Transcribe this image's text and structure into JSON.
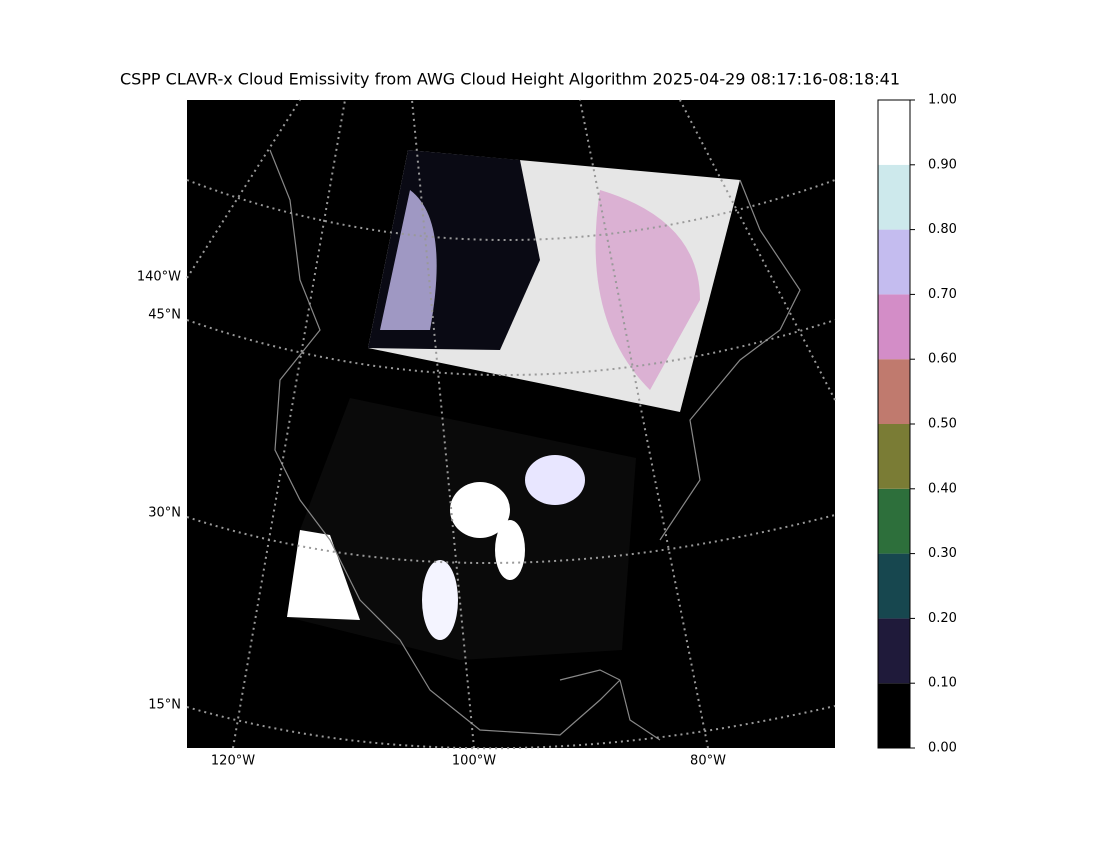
{
  "title": "CSPP CLAVR-x Cloud Emissivity from AWG Cloud Height Algorithm 2025-04-29 08:17:16-08:18:41",
  "map": {
    "lat_labels": [
      "45°N",
      "30°N",
      "15°N"
    ],
    "lon_labels_left": [
      "140°W"
    ],
    "lon_labels_bottom": [
      "120°W",
      "100°W",
      "80°W"
    ]
  },
  "colorbar": {
    "lim": [
      0,
      1
    ],
    "ticks": [
      {
        "value": 0,
        "label": "0.00"
      },
      {
        "value": 0.1,
        "label": "0.10"
      },
      {
        "value": 0.2,
        "label": "0.20"
      },
      {
        "value": 0.3,
        "label": "0.30"
      },
      {
        "value": 0.4,
        "label": "0.40"
      },
      {
        "value": 0.5,
        "label": "0.50"
      },
      {
        "value": 0.6,
        "label": "0.60"
      },
      {
        "value": 0.7,
        "label": "0.70"
      },
      {
        "value": 0.8,
        "label": "0.80"
      },
      {
        "value": 0.9,
        "label": "0.90"
      },
      {
        "value": 1,
        "label": "1.00"
      }
    ],
    "colors": [
      "#000000",
      "#1f1a3a",
      "#17474f",
      "#2d6f3b",
      "#7a7c35",
      "#c07a6e",
      "#d38dc7",
      "#c4bcef",
      "#cde9ec",
      "#ffffff"
    ]
  }
}
